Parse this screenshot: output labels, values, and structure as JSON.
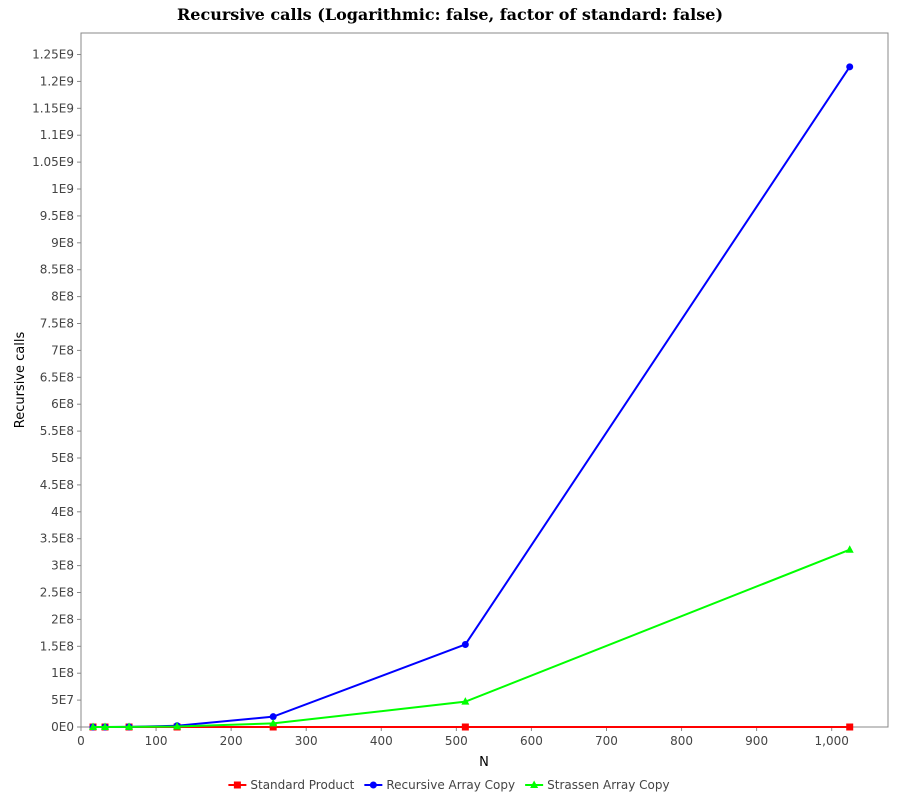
{
  "chart_data": {
    "type": "line",
    "title": "Recursive calls (Logarithmic: false, factor of standard: false)",
    "xlabel": "N",
    "ylabel": "Recursive calls",
    "xlim": [
      0,
      1075
    ],
    "ylim": [
      0,
      1290000000
    ],
    "xticks": [
      0,
      100,
      200,
      300,
      400,
      500,
      600,
      700,
      800,
      900,
      1000
    ],
    "xtick_labels": [
      "0",
      "100",
      "200",
      "300",
      "400",
      "500",
      "600",
      "700",
      "800",
      "900",
      "1,000"
    ],
    "yticks": [
      0,
      50000000,
      100000000,
      150000000,
      200000000,
      250000000,
      300000000,
      350000000,
      400000000,
      450000000,
      500000000,
      550000000,
      600000000,
      650000000,
      700000000,
      750000000,
      800000000,
      850000000,
      900000000,
      950000000,
      1000000000,
      1050000000,
      1100000000,
      1150000000,
      1200000000,
      1250000000
    ],
    "ytick_labels": [
      "0E0",
      "5E7",
      "1E8",
      "1.5E8",
      "2E8",
      "2.5E8",
      "3E8",
      "3.5E8",
      "4E8",
      "4.5E8",
      "5E8",
      "5.5E8",
      "6E8",
      "6.5E8",
      "7E8",
      "7.5E8",
      "8E8",
      "8.5E8",
      "9E8",
      "9.5E8",
      "1E9",
      "1.05E9",
      "1.1E9",
      "1.15E9",
      "1.2E9",
      "1.25E9"
    ],
    "grid": false,
    "legend_position": "bottom",
    "series": [
      {
        "name": "Standard Product",
        "color": "#ff0000",
        "marker": "square",
        "x": [
          16,
          32,
          64,
          128,
          256,
          512,
          1024
        ],
        "y": [
          0,
          0,
          0,
          0,
          0,
          0,
          0
        ]
      },
      {
        "name": "Recursive Array Copy",
        "color": "#0000ff",
        "marker": "circle",
        "x": [
          16,
          32,
          64,
          128,
          256,
          512,
          1024
        ],
        "y": [
          4681,
          37449,
          299593,
          2396745,
          19173961,
          153391689,
          1227133513
        ]
      },
      {
        "name": "Strassen Array Copy",
        "color": "#00ff00",
        "marker": "triangle",
        "x": [
          16,
          32,
          64,
          128,
          256,
          512,
          1024
        ],
        "y": [
          2801,
          19608,
          137257,
          960800,
          6725601,
          47079208,
          329554457
        ]
      }
    ]
  }
}
